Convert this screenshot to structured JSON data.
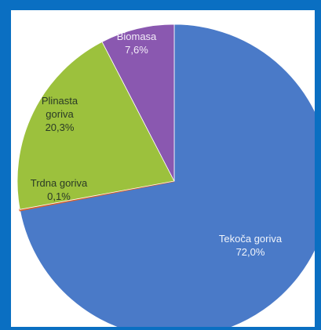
{
  "chart_data": {
    "type": "pie",
    "title": "",
    "slices": [
      {
        "label": "Tekoča goriva",
        "value_label": "72,0%",
        "value": 72.0,
        "color": "#4a7ac8",
        "text_color": "#f0f4fb"
      },
      {
        "label": "Trdna goriva",
        "value_label": "0,1%",
        "value": 0.1,
        "color": "#d9622b",
        "text_color": "#2a3a26"
      },
      {
        "label": "Plinasta goriva",
        "value_label": "20,3%",
        "value": 20.3,
        "color": "#9cc13d",
        "text_color": "#2a3a26"
      },
      {
        "label": "Biomasa",
        "value_label": "7,6%",
        "value": 7.6,
        "color": "#8a58b0",
        "text_color": "#f3ecf8"
      }
    ],
    "start_angle": "12 o'clock",
    "direction": "clockwise",
    "legend": "none"
  },
  "colors": {
    "background": "#0a6fc2",
    "plot_area": "#ffffff"
  }
}
